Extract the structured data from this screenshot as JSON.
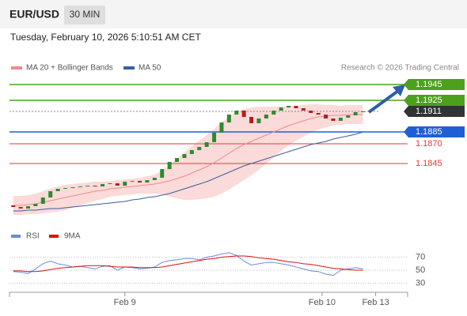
{
  "header": {
    "symbol": "EUR/USD",
    "timeframe": "30 MIN",
    "timestamp": "Tuesday, February 10, 2026 5:10:51 AM CET"
  },
  "chart_data": [
    {
      "type": "candlestick",
      "source": "Research © 2026 Trading Central",
      "xlim": [
        -0.5,
        53
      ],
      "ylim": [
        1.1782,
        1.1957
      ],
      "up_color": "#2e8b2e",
      "down_color": "#b71c1c",
      "open": [
        1.1792,
        1.179,
        1.1788,
        1.1791,
        1.1794,
        1.1802,
        1.181,
        1.1813,
        1.1814,
        1.1815,
        1.1816,
        1.1817,
        1.1816,
        1.1819,
        1.182,
        1.1817,
        1.1822,
        1.1823,
        1.1821,
        1.1824,
        1.1827,
        1.1838,
        1.1847,
        1.1852,
        1.1857,
        1.1862,
        1.1866,
        1.1872,
        1.1884,
        1.1897,
        1.1907,
        1.1912,
        1.1904,
        1.1896,
        1.1902,
        1.1907,
        1.1912,
        1.1916,
        1.1918,
        1.1915,
        1.1912,
        1.1909,
        1.1907,
        1.1902,
        1.1899,
        1.1903,
        1.1906,
        1.191
      ],
      "close": [
        1.179,
        1.1788,
        1.1791,
        1.1794,
        1.1802,
        1.181,
        1.1813,
        1.1814,
        1.1815,
        1.1816,
        1.1817,
        1.1816,
        1.1819,
        1.182,
        1.1817,
        1.1822,
        1.1823,
        1.1821,
        1.1824,
        1.1827,
        1.1838,
        1.1847,
        1.1852,
        1.1857,
        1.1862,
        1.1866,
        1.1872,
        1.1884,
        1.1897,
        1.1907,
        1.1912,
        1.1904,
        1.1896,
        1.1902,
        1.1907,
        1.1912,
        1.1916,
        1.1918,
        1.1915,
        1.1912,
        1.1909,
        1.1907,
        1.1902,
        1.1899,
        1.1903,
        1.1906,
        1.191,
        1.1911
      ],
      "series": [
        {
          "name": "MA 20 + Bollinger Bands",
          "color": "#f08a8a",
          "band_color": "#fbdada",
          "values": [
            1.1792,
            1.1792,
            1.1793,
            1.1794,
            1.1796,
            1.1798,
            1.18,
            1.1802,
            1.1804,
            1.1806,
            1.1808,
            1.181,
            1.1811,
            1.1813,
            1.1814,
            1.1815,
            1.1816,
            1.1817,
            1.1818,
            1.1819,
            1.1821,
            1.1823,
            1.1826,
            1.1829,
            1.1833,
            1.1837,
            1.1841,
            1.1846,
            1.1852,
            1.1858,
            1.1864,
            1.1869,
            1.1873,
            1.1877,
            1.1881,
            1.1885,
            1.1889,
            1.1893,
            1.1896,
            1.1899,
            1.1902,
            1.1904,
            1.1905,
            1.1906,
            1.1906,
            1.1907,
            1.1907,
            1.1907
          ],
          "upper": [
            1.1804,
            1.1804,
            1.1805,
            1.1807,
            1.181,
            1.1813,
            1.1816,
            1.1818,
            1.1819,
            1.182,
            1.1821,
            1.1822,
            1.1822,
            1.1823,
            1.1824,
            1.1825,
            1.1826,
            1.1827,
            1.1829,
            1.1831,
            1.1836,
            1.1843,
            1.1851,
            1.1859,
            1.1867,
            1.1874,
            1.1881,
            1.1889,
            1.1897,
            1.1904,
            1.191,
            1.1914,
            1.1916,
            1.1917,
            1.1917,
            1.1917,
            1.1917,
            1.1918,
            1.1918,
            1.1919,
            1.192,
            1.192,
            1.1919,
            1.1919,
            1.1918,
            1.1919,
            1.1919,
            1.1919
          ],
          "lower": [
            1.178,
            1.178,
            1.1781,
            1.1781,
            1.1782,
            1.1783,
            1.1784,
            1.1786,
            1.1789,
            1.1792,
            1.1795,
            1.1798,
            1.18,
            1.1803,
            1.1804,
            1.1805,
            1.1806,
            1.1807,
            1.1807,
            1.1807,
            1.1806,
            1.1803,
            1.1801,
            1.1799,
            1.1799,
            1.18,
            1.1801,
            1.1803,
            1.1807,
            1.1812,
            1.1818,
            1.1824,
            1.183,
            1.1837,
            1.1845,
            1.1853,
            1.1861,
            1.1868,
            1.1874,
            1.1879,
            1.1884,
            1.1888,
            1.1891,
            1.1893,
            1.1894,
            1.1895,
            1.1895,
            1.1895
          ]
        },
        {
          "name": "MA 50",
          "color": "#3b5e9e",
          "values": [
            1.1785,
            1.1785,
            1.1786,
            1.1786,
            1.1787,
            1.1788,
            1.1788,
            1.1789,
            1.179,
            1.1791,
            1.1792,
            1.1793,
            1.1794,
            1.1795,
            1.1796,
            1.1797,
            1.1799,
            1.18,
            1.1802,
            1.1803,
            1.1805,
            1.1807,
            1.181,
            1.1813,
            1.1816,
            1.1819,
            1.1822,
            1.1826,
            1.183,
            1.1834,
            1.1838,
            1.1842,
            1.1845,
            1.1848,
            1.1851,
            1.1854,
            1.1857,
            1.186,
            1.1863,
            1.1866,
            1.1869,
            1.1871,
            1.1873,
            1.1876,
            1.1878,
            1.188,
            1.1882,
            1.1885
          ]
        }
      ],
      "levels": [
        {
          "value": 1.1945,
          "color": "#4ca01c",
          "box": true
        },
        {
          "value": 1.1925,
          "color": "#4ca01c",
          "box": true
        },
        {
          "value": 1.1911,
          "color": "#333333",
          "box": true,
          "dashed": true
        },
        {
          "value": 1.1885,
          "color": "#1f5fd6",
          "box": true
        },
        {
          "value": 1.187,
          "label": "1.1870",
          "color": "#e53935",
          "box": false
        },
        {
          "value": 1.1845,
          "color": "#e53935",
          "box": false
        }
      ]
    },
    {
      "type": "line",
      "xlim": [
        -0.5,
        53
      ],
      "ylim": [
        16,
        89
      ],
      "yticks": [
        70,
        50,
        30
      ],
      "xticks": [
        {
          "value": 15,
          "label": "Feb 9"
        },
        {
          "value": 41.5,
          "label": "Feb 10"
        },
        {
          "value": 48.7,
          "label": "Feb 13"
        }
      ],
      "series": [
        {
          "name": "RSI",
          "color": "#6b8bd8",
          "values": [
            48,
            47,
            45,
            52,
            60,
            64,
            60,
            58,
            55,
            56,
            54,
            52,
            56,
            57,
            50,
            55,
            54,
            52,
            53,
            55,
            62,
            65,
            66,
            68,
            68,
            66,
            70,
            72,
            75,
            77,
            73,
            64,
            58,
            60,
            62,
            62,
            60,
            58,
            55,
            52,
            49,
            48,
            44,
            42,
            50,
            52,
            54,
            52
          ]
        },
        {
          "name": "9MA",
          "color": "#e01010",
          "values": [
            49,
            49,
            48,
            48,
            49,
            51,
            53,
            54,
            55,
            56,
            57,
            57,
            57,
            56,
            55,
            55,
            55,
            54,
            54,
            54,
            55,
            57,
            59,
            61,
            63,
            65,
            67,
            68,
            70,
            71,
            72,
            72,
            71,
            69,
            68,
            67,
            65,
            63,
            62,
            60,
            59,
            57,
            55,
            53,
            52,
            51,
            50,
            50
          ]
        }
      ]
    }
  ]
}
